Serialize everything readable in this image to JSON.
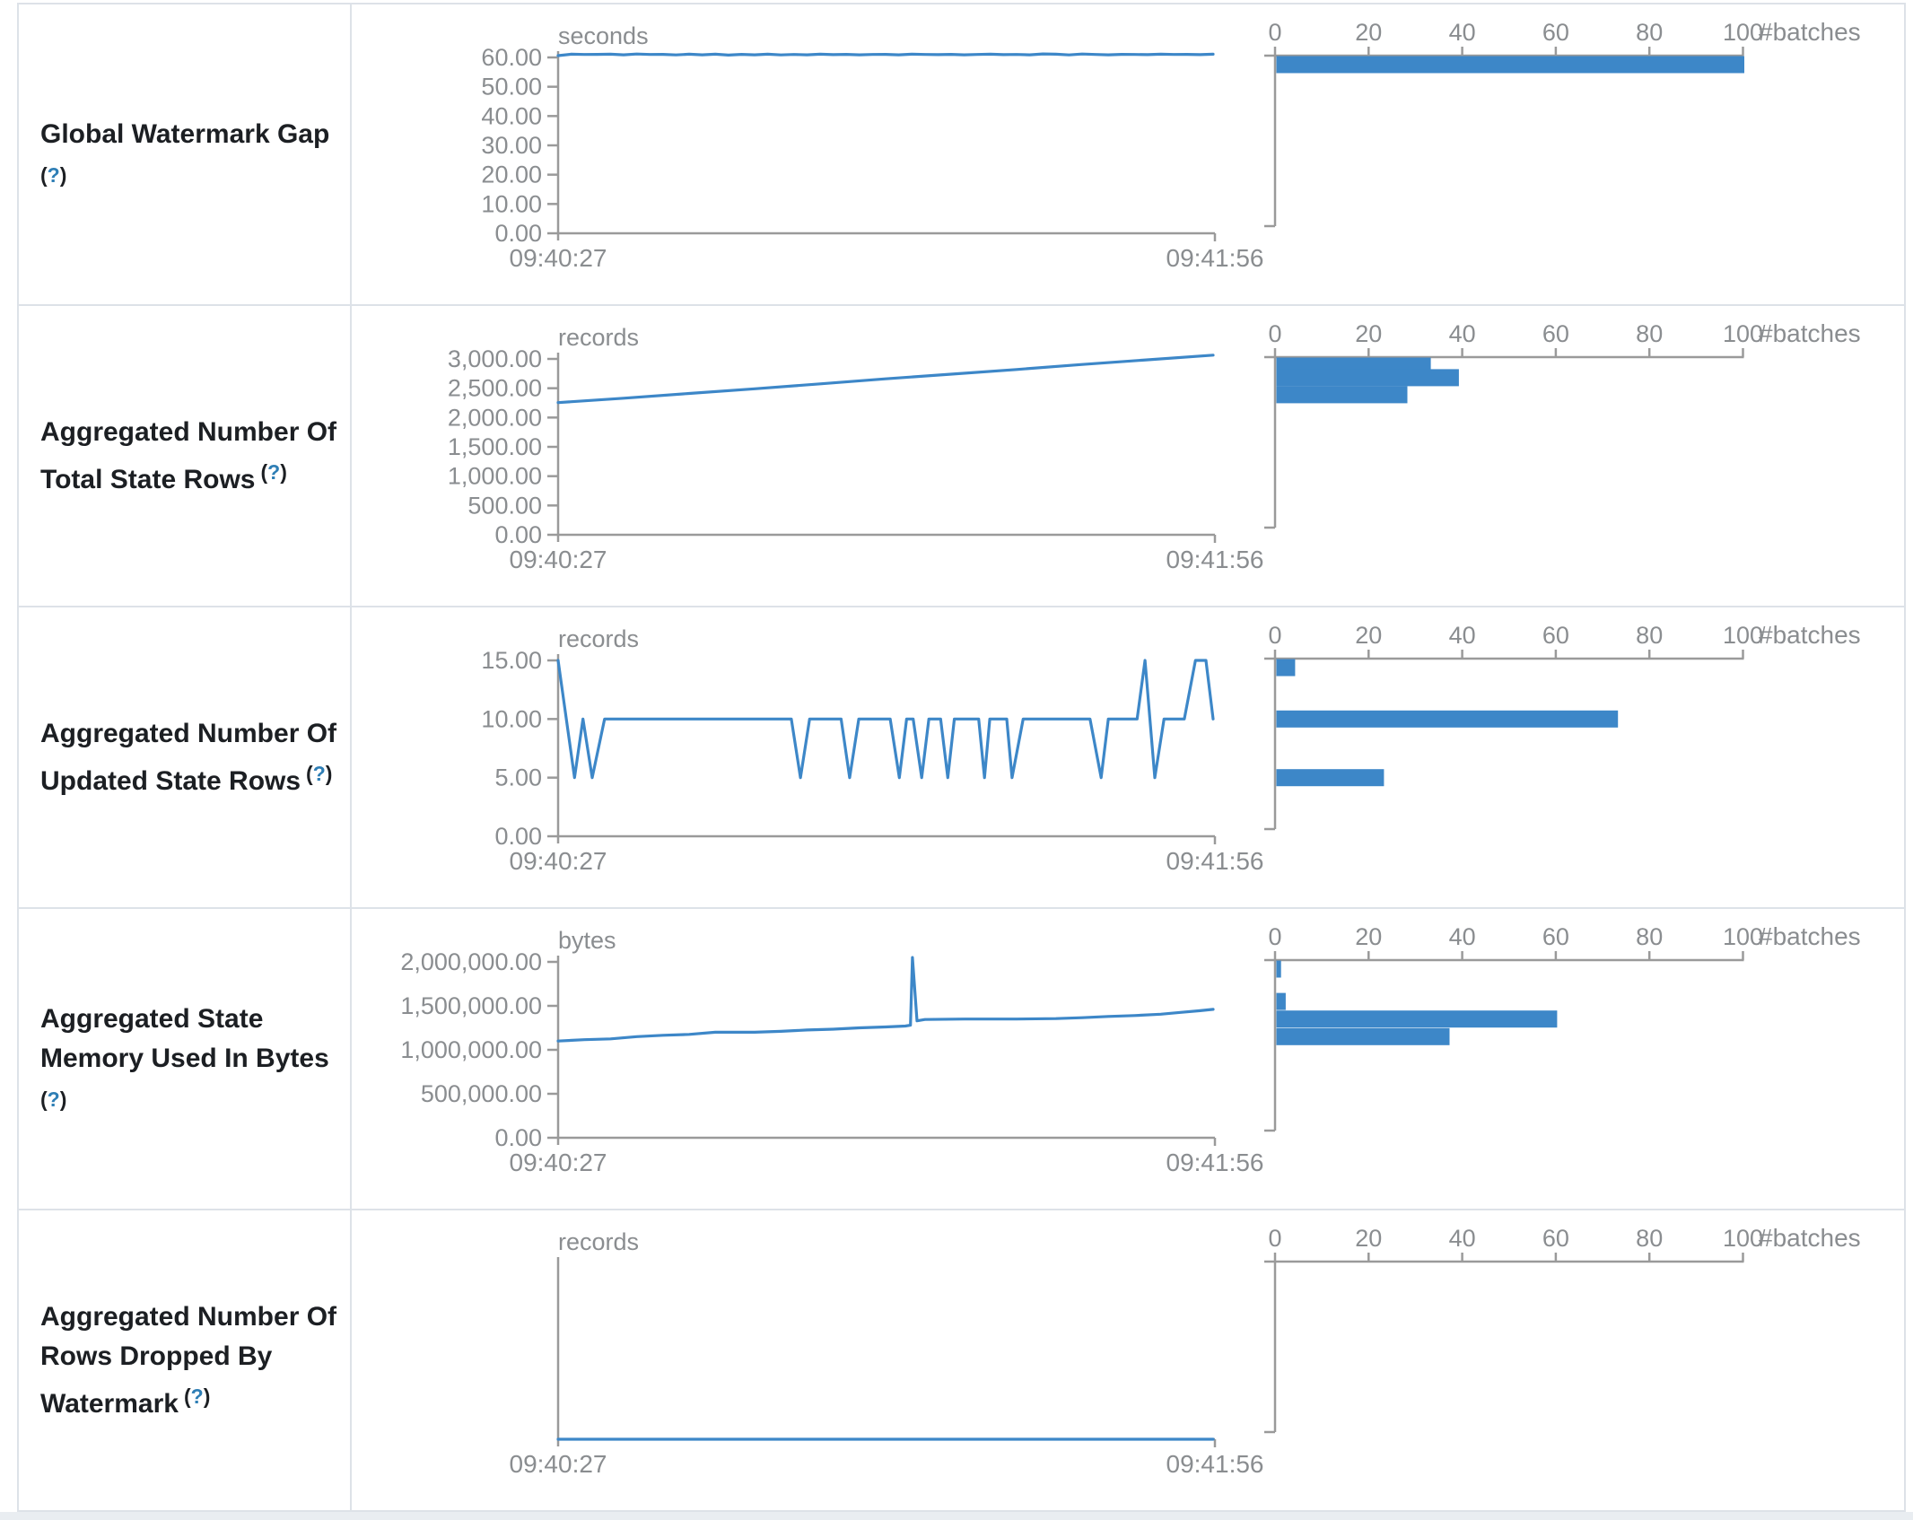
{
  "palette": {
    "accent": "#3d87c8",
    "axis": "#9a9a9a",
    "tick_text": "#8a8d90",
    "label_text": "#1c1f23",
    "help_mark": "#2e7eb5",
    "border": "#dde2e8",
    "footer_bg": "#e9edf1"
  },
  "time_axis": {
    "start": "09:40:27",
    "end": "09:41:56"
  },
  "hist_axis": {
    "ticks": [
      0,
      20,
      40,
      60,
      80,
      100
    ],
    "label": "#batches"
  },
  "rows": [
    {
      "name": "global-watermark-gap",
      "label_lines": [
        "Global Watermark Gap"
      ],
      "help": {
        "open": "(",
        "mark": "?",
        "close": ")"
      },
      "help_own_line": true
    },
    {
      "name": "aggregated-total-state-rows",
      "label_lines": [
        "Aggregated Number Of",
        "Total State Rows"
      ],
      "help": {
        "open": "(",
        "mark": "?",
        "close": ")"
      },
      "help_own_line": false
    },
    {
      "name": "aggregated-updated-state-rows",
      "label_lines": [
        "Aggregated Number Of",
        "Updated State Rows"
      ],
      "help": {
        "open": "(",
        "mark": "?",
        "close": ")"
      },
      "help_own_line": false
    },
    {
      "name": "aggregated-state-memory-used",
      "label_lines": [
        "Aggregated State",
        "Memory Used In Bytes"
      ],
      "help": {
        "open": "(",
        "mark": "?",
        "close": ")"
      },
      "help_own_line": true
    },
    {
      "name": "aggregated-rows-dropped-by-watermark",
      "label_lines": [
        "Aggregated Number Of",
        "Rows Dropped By",
        "Watermark"
      ],
      "help": {
        "open": "(",
        "mark": "?",
        "close": ")"
      },
      "help_own_line": false
    }
  ],
  "chart_data": [
    {
      "metric": "Global Watermark Gap",
      "type": "line",
      "unit": "seconds",
      "x_start": "09:40:27",
      "x_end": "09:41:56",
      "y_tick_labels": [
        "60.00",
        "50.00",
        "40.00",
        "30.00",
        "20.00",
        "10.00",
        "0.00"
      ],
      "y_max_tick": 60,
      "timeline": [
        [
          0,
          60.6
        ],
        [
          0.02,
          61.1
        ],
        [
          0.04,
          61.0
        ],
        [
          0.06,
          61.05
        ],
        [
          0.08,
          61.1
        ],
        [
          0.1,
          60.9
        ],
        [
          0.12,
          61.15
        ],
        [
          0.14,
          61.0
        ],
        [
          0.16,
          61.05
        ],
        [
          0.18,
          60.85
        ],
        [
          0.2,
          61.1
        ],
        [
          0.22,
          60.9
        ],
        [
          0.24,
          61.1
        ],
        [
          0.26,
          60.8
        ],
        [
          0.28,
          61.05
        ],
        [
          0.3,
          60.9
        ],
        [
          0.32,
          61.1
        ],
        [
          0.34,
          60.85
        ],
        [
          0.36,
          61.0
        ],
        [
          0.38,
          60.9
        ],
        [
          0.4,
          61.1
        ],
        [
          0.42,
          60.95
        ],
        [
          0.44,
          61.05
        ],
        [
          0.46,
          60.9
        ],
        [
          0.48,
          61.0
        ],
        [
          0.5,
          61.05
        ],
        [
          0.52,
          60.9
        ],
        [
          0.54,
          61.1
        ],
        [
          0.56,
          61.0
        ],
        [
          0.58,
          60.95
        ],
        [
          0.6,
          61.05
        ],
        [
          0.62,
          60.9
        ],
        [
          0.64,
          61.0
        ],
        [
          0.66,
          61.1
        ],
        [
          0.68,
          60.95
        ],
        [
          0.7,
          61.0
        ],
        [
          0.72,
          60.9
        ],
        [
          0.74,
          61.2
        ],
        [
          0.76,
          61.1
        ],
        [
          0.78,
          60.85
        ],
        [
          0.8,
          61.15
        ],
        [
          0.82,
          61.0
        ],
        [
          0.84,
          60.9
        ],
        [
          0.86,
          61.05
        ],
        [
          0.88,
          61.0
        ],
        [
          0.9,
          60.95
        ],
        [
          0.92,
          61.1
        ],
        [
          0.94,
          61.0
        ],
        [
          0.96,
          61.05
        ],
        [
          0.98,
          60.95
        ],
        [
          1,
          61.1
        ]
      ],
      "histogram": {
        "axis_label": "#batches",
        "axis_ticks": [
          0,
          20,
          40,
          60,
          80,
          100
        ],
        "bars": [
          {
            "value": 61,
            "count": 100
          }
        ]
      }
    },
    {
      "metric": "Aggregated Number Of Total State Rows",
      "type": "line",
      "unit": "records",
      "x_start": "09:40:27",
      "x_end": "09:41:56",
      "y_tick_labels": [
        "3,000.00",
        "2,500.00",
        "2,000.00",
        "1,500.00",
        "1,000.00",
        "500.00",
        "0.00"
      ],
      "y_max_tick": 3000,
      "timeline": [
        [
          0,
          2255
        ],
        [
          0.1,
          2330
        ],
        [
          0.2,
          2410
        ],
        [
          0.3,
          2490
        ],
        [
          0.4,
          2575
        ],
        [
          0.5,
          2660
        ],
        [
          0.6,
          2740
        ],
        [
          0.7,
          2820
        ],
        [
          0.8,
          2905
        ],
        [
          0.9,
          2985
        ],
        [
          1,
          3065
        ]
      ],
      "histogram": {
        "axis_label": "#batches",
        "axis_ticks": [
          0,
          20,
          40,
          60,
          80,
          100
        ],
        "bars": [
          {
            "value": 2980,
            "count": 33
          },
          {
            "value": 2680,
            "count": 39
          },
          {
            "value": 2390,
            "count": 28
          }
        ]
      }
    },
    {
      "metric": "Aggregated Number Of Updated State Rows",
      "type": "line",
      "unit": "records",
      "x_start": "09:40:27",
      "x_end": "09:41:56",
      "y_tick_labels": [
        "15.00",
        "10.00",
        "5.00",
        "0.00"
      ],
      "y_max_tick": 15,
      "timeline": [
        [
          0,
          15
        ],
        [
          0.025,
          5
        ],
        [
          0.038,
          10
        ],
        [
          0.052,
          5
        ],
        [
          0.071,
          10
        ],
        [
          0.356,
          10
        ],
        [
          0.37,
          5
        ],
        [
          0.384,
          10
        ],
        [
          0.432,
          10
        ],
        [
          0.445,
          5
        ],
        [
          0.459,
          10
        ],
        [
          0.507,
          10
        ],
        [
          0.521,
          5
        ],
        [
          0.532,
          10
        ],
        [
          0.542,
          10
        ],
        [
          0.555,
          5
        ],
        [
          0.566,
          10
        ],
        [
          0.584,
          10
        ],
        [
          0.595,
          5
        ],
        [
          0.605,
          10
        ],
        [
          0.642,
          10
        ],
        [
          0.651,
          5
        ],
        [
          0.659,
          10
        ],
        [
          0.685,
          10
        ],
        [
          0.693,
          5
        ],
        [
          0.71,
          10
        ],
        [
          0.812,
          10
        ],
        [
          0.829,
          5
        ],
        [
          0.84,
          10
        ],
        [
          0.884,
          10
        ],
        [
          0.896,
          15
        ],
        [
          0.911,
          5
        ],
        [
          0.925,
          10
        ],
        [
          0.956,
          10
        ],
        [
          0.973,
          15
        ],
        [
          0.989,
          15
        ],
        [
          1,
          10
        ]
      ],
      "histogram": {
        "axis_label": "#batches",
        "axis_ticks": [
          0,
          20,
          40,
          60,
          80,
          100
        ],
        "bars": [
          {
            "value": 15,
            "count": 4
          },
          {
            "value": 10,
            "count": 73
          },
          {
            "value": 5,
            "count": 23
          }
        ]
      }
    },
    {
      "metric": "Aggregated State Memory Used In Bytes",
      "type": "line",
      "unit": "bytes",
      "x_start": "09:40:27",
      "x_end": "09:41:56",
      "y_tick_labels": [
        "2,000,000.00",
        "1,500,000.00",
        "1,000,000.00",
        "500,000.00",
        "0.00"
      ],
      "y_max_tick": 2000000,
      "timeline": [
        [
          0,
          1100000
        ],
        [
          0.04,
          1115000
        ],
        [
          0.08,
          1125000
        ],
        [
          0.12,
          1150000
        ],
        [
          0.16,
          1165000
        ],
        [
          0.2,
          1175000
        ],
        [
          0.24,
          1200000
        ],
        [
          0.3,
          1200000
        ],
        [
          0.34,
          1210000
        ],
        [
          0.38,
          1225000
        ],
        [
          0.42,
          1235000
        ],
        [
          0.46,
          1250000
        ],
        [
          0.5,
          1260000
        ],
        [
          0.53,
          1270000
        ],
        [
          0.538,
          1280000
        ],
        [
          0.541,
          2050000
        ],
        [
          0.548,
          1330000
        ],
        [
          0.56,
          1345000
        ],
        [
          0.62,
          1350000
        ],
        [
          0.7,
          1350000
        ],
        [
          0.76,
          1355000
        ],
        [
          0.8,
          1365000
        ],
        [
          0.84,
          1380000
        ],
        [
          0.88,
          1390000
        ],
        [
          0.92,
          1405000
        ],
        [
          0.95,
          1425000
        ],
        [
          0.98,
          1445000
        ],
        [
          1,
          1460000
        ]
      ],
      "histogram": {
        "axis_label": "#batches",
        "axis_ticks": [
          0,
          20,
          40,
          60,
          80,
          100
        ],
        "bars": [
          {
            "value": 1960000,
            "count": 1
          },
          {
            "value": 1550000,
            "count": 2
          },
          {
            "value": 1350000,
            "count": 60
          },
          {
            "value": 1150000,
            "count": 37
          }
        ]
      }
    },
    {
      "metric": "Aggregated Number Of Rows Dropped By Watermark",
      "type": "line",
      "unit": "records",
      "x_start": "09:40:27",
      "x_end": "09:41:56",
      "y_tick_labels": [],
      "y_max_tick": 1,
      "timeline": [
        [
          0,
          0
        ],
        [
          1,
          0
        ]
      ],
      "histogram": {
        "axis_label": "#batches",
        "axis_ticks": [
          0,
          20,
          40,
          60,
          80,
          100
        ],
        "bars": []
      }
    }
  ]
}
